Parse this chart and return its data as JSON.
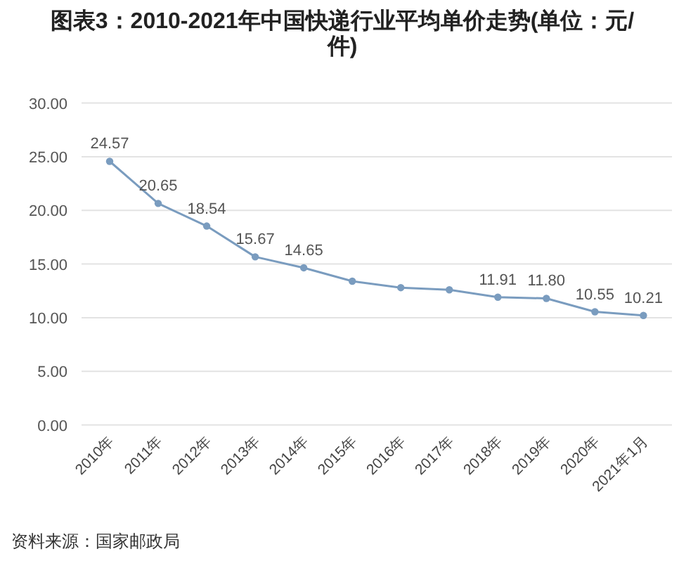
{
  "chart_data": {
    "type": "line",
    "title": "图表3：2010-2021年中国快递行业平均单价走势(单位：元/件)",
    "categories": [
      "2010年",
      "2011年",
      "2012年",
      "2013年",
      "2014年",
      "2015年",
      "2016年",
      "2017年",
      "2018年",
      "2019年",
      "2020年",
      "2021年1月"
    ],
    "series": [
      {
        "color": "#7a9cbf",
        "values": [
          24.57,
          20.65,
          18.54,
          15.67,
          14.65,
          13.4,
          12.8,
          12.6,
          11.91,
          11.8,
          10.55,
          10.21
        ],
        "value_labels": [
          "24.57",
          "20.65",
          "18.54",
          "15.67",
          "14.65",
          null,
          null,
          null,
          "11.91",
          "11.80",
          "10.55",
          "10.21"
        ]
      }
    ],
    "ylim": [
      0,
      30
    ],
    "yticks": [
      {
        "value": 0,
        "label": "0.00"
      },
      {
        "value": 5,
        "label": "5.00"
      },
      {
        "value": 10,
        "label": "10.00"
      },
      {
        "value": 15,
        "label": "15.00"
      },
      {
        "value": 20,
        "label": "20.00"
      },
      {
        "value": 25,
        "label": "25.00"
      },
      {
        "value": 30,
        "label": "30.00"
      }
    ],
    "grid": "y",
    "marker": "circle",
    "line_style": "solid",
    "annotations": [
      "资料来源：国家邮政局"
    ]
  }
}
